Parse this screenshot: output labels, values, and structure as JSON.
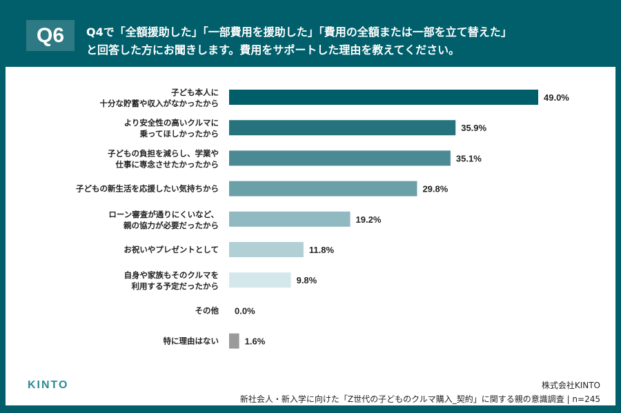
{
  "header": {
    "badge": "Q6",
    "title_line1": "Q4で「全額援助した」「一部費用を援助した」「費用の全額または一部を立て替えた」",
    "title_line2": "と回答した方にお聞きします。費用をサポートした理由を教えてください。"
  },
  "footer": {
    "logo": "KINTO",
    "company": "株式会社KINTO",
    "source": "新社会人・新入学に向けた「Z世代の子どものクルマ購入_契約」に関する親の意識調査 | n=245"
  },
  "chart_data": {
    "type": "bar",
    "orientation": "horizontal",
    "xlim": [
      0,
      49
    ],
    "grid": false,
    "categories": [
      [
        "子ども本人に",
        "十分な貯蓄や収入がなかったから"
      ],
      [
        "より安全性の高いクルマに",
        "乗ってほしかったから"
      ],
      [
        "子どもの負担を減らし、学業や",
        "仕事に専念させたかったから"
      ],
      [
        "子どもの新生活を応援したい気持ちから"
      ],
      [
        "ローン審査が通りにくいなど、",
        "親の協力が必要だったから"
      ],
      [
        "お祝いやプレゼントとして"
      ],
      [
        "自身や家族もそのクルマを",
        "利用する予定だったから"
      ],
      [
        "その他"
      ],
      [
        "特に理由はない"
      ]
    ],
    "values": [
      49.0,
      35.9,
      35.1,
      29.8,
      19.2,
      11.8,
      9.8,
      0.0,
      1.6
    ],
    "value_labels": [
      "49.0%",
      "35.9%",
      "35.1%",
      "29.8%",
      "19.2%",
      "11.8%",
      "9.8%",
      "0.0%",
      "1.6%"
    ],
    "colors": [
      "#005e69",
      "#26737d",
      "#4b8a94",
      "#6aa0a8",
      "#90b9c1",
      "#b0d0d6",
      "#d4e7eb",
      "#cccccc",
      "#9a9a9a"
    ]
  }
}
